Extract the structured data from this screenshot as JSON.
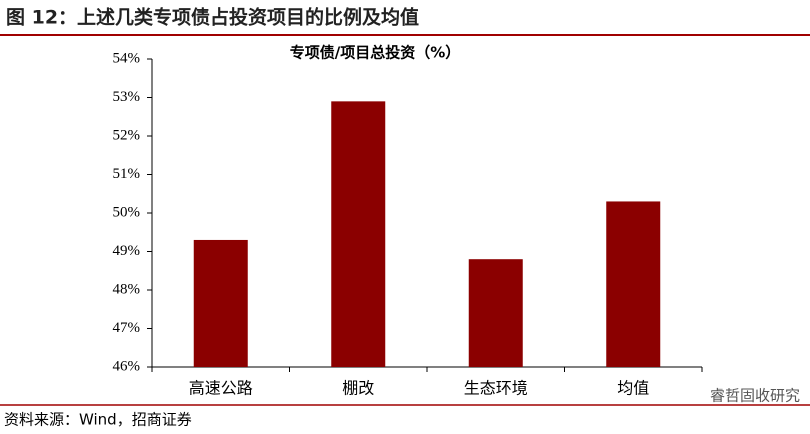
{
  "chart_data": {
    "type": "bar",
    "title": "图 12：上述几类专项债占投资项目的比例及均值",
    "subtitle": "专项债/项目总投资（%）",
    "categories": [
      "高速公路",
      "棚改",
      "生态环境",
      "均值"
    ],
    "values": [
      49.3,
      52.9,
      48.8,
      50.3
    ],
    "color": "#8b0000",
    "ylim": [
      46,
      54
    ],
    "yticks": [
      {
        "value": 46,
        "label": "46%"
      },
      {
        "value": 47,
        "label": "47%"
      },
      {
        "value": 48,
        "label": "48%"
      },
      {
        "value": 49,
        "label": "49%"
      },
      {
        "value": 50,
        "label": "50%"
      },
      {
        "value": 51,
        "label": "51%"
      },
      {
        "value": 52,
        "label": "52%"
      },
      {
        "value": 53,
        "label": "53%"
      },
      {
        "value": 54,
        "label": "54%"
      }
    ],
    "grid": false,
    "source": "资料来源：Wind，招商证券",
    "watermark": "睿哲固收研究"
  }
}
